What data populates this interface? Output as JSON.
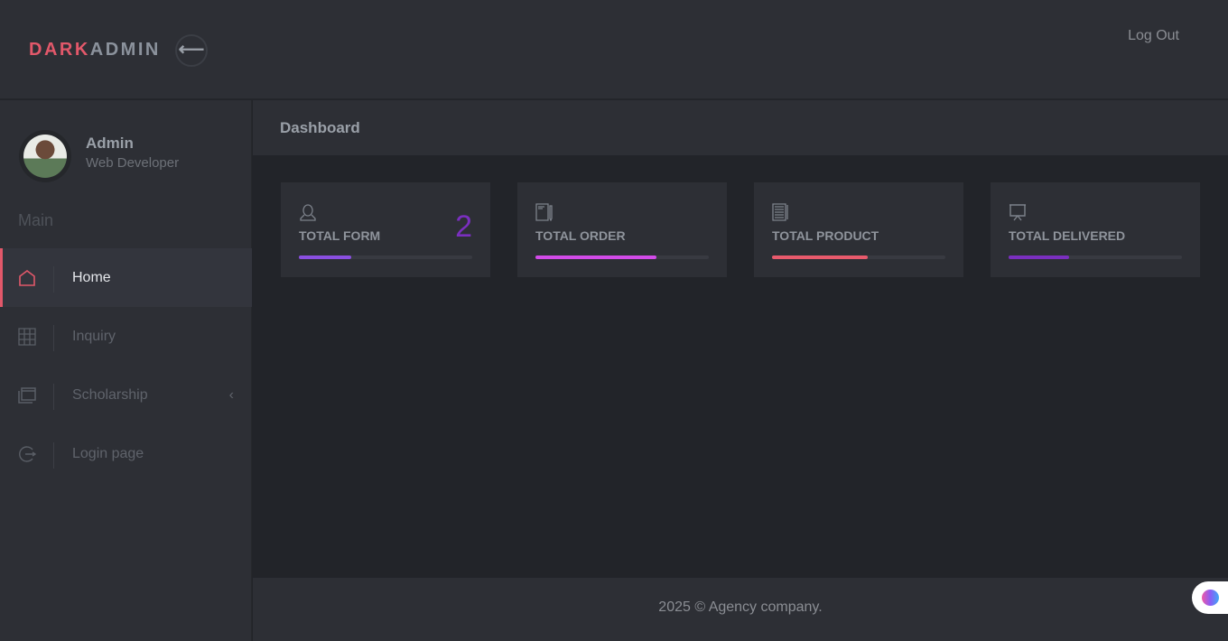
{
  "header": {
    "logo_part1": "DARK",
    "logo_part2": "ADMIN",
    "toggle_icon": "arrow-left-icon",
    "logout_label": "Log Out"
  },
  "user": {
    "name": "Admin",
    "role": "Web Developer"
  },
  "sidebar": {
    "section": "Main",
    "items": [
      {
        "label": "Home",
        "icon": "home-icon",
        "active": true
      },
      {
        "label": "Inquiry",
        "icon": "grid-icon"
      },
      {
        "label": "Scholarship",
        "icon": "windows-icon",
        "has_submenu": true
      },
      {
        "label": "Login page",
        "icon": "logout-icon"
      }
    ]
  },
  "breadcrumb": {
    "title": "Dashboard"
  },
  "cards": [
    {
      "title": "TOTAL FORM",
      "value": "2",
      "icon": "user-icon",
      "progress_percent": 30,
      "color": "#8a4fe0"
    },
    {
      "title": "TOTAL ORDER",
      "icon": "notebook-icon",
      "progress_percent": 70,
      "color": "#d24be8"
    },
    {
      "title": "TOTAL PRODUCT",
      "icon": "document-icon",
      "progress_percent": 55,
      "color": "#e85a6c"
    },
    {
      "title": "TOTAL DELIVERED",
      "icon": "presentation-icon",
      "progress_percent": 35,
      "color": "#7a2fbf"
    }
  ],
  "footer": {
    "text": "2025 © Agency company."
  },
  "colors": {
    "accent": "#e2586a",
    "background": "#222429",
    "panel": "#2d2f35"
  }
}
